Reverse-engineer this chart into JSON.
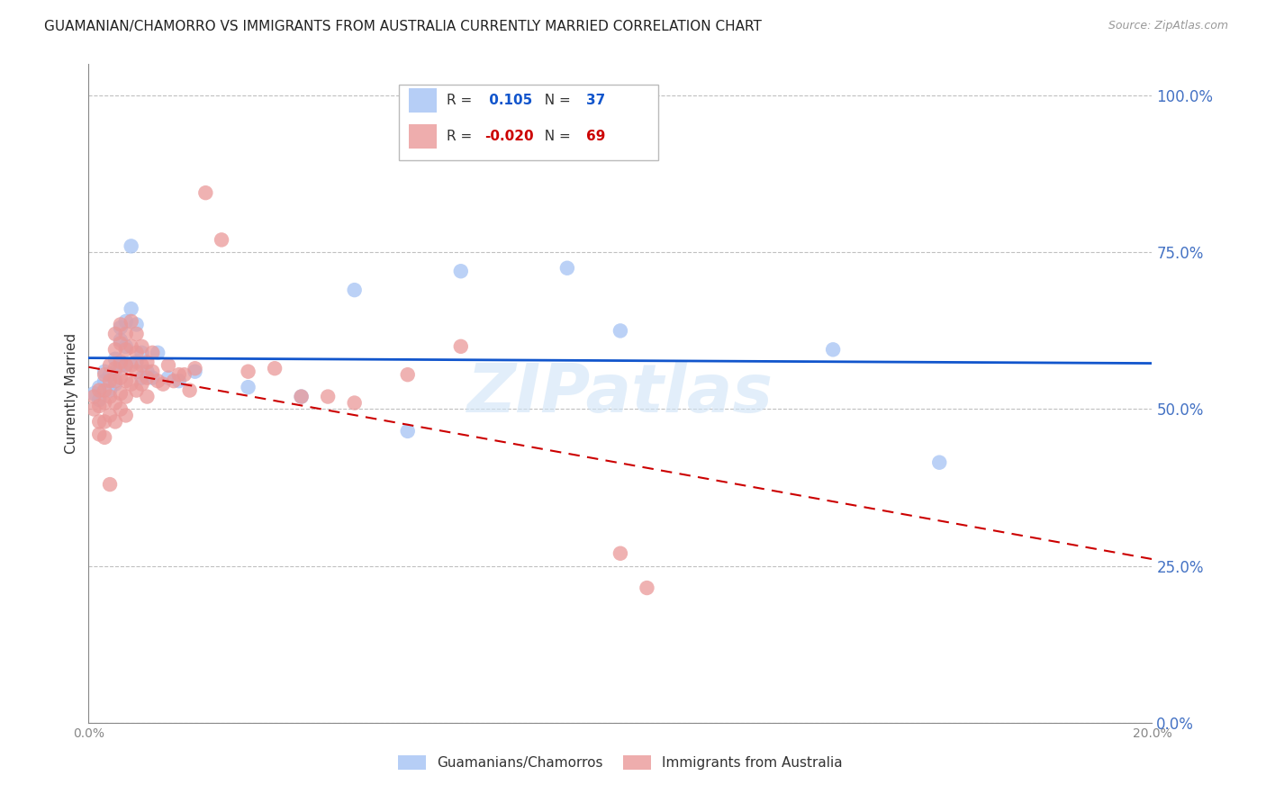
{
  "title": "GUAMANIAN/CHAMORRO VS IMMIGRANTS FROM AUSTRALIA CURRENTLY MARRIED CORRELATION CHART",
  "source": "Source: ZipAtlas.com",
  "ylabel": "Currently Married",
  "right_yticks": [
    0.0,
    0.25,
    0.5,
    0.75,
    1.0
  ],
  "right_yticklabels": [
    "0.0%",
    "25.0%",
    "50.0%",
    "75.0%",
    "100.0%"
  ],
  "legend_blue_R": "0.105",
  "legend_blue_N": "37",
  "legend_pink_R": "-0.020",
  "legend_pink_N": "69",
  "blue_color": "#a4c2f4",
  "pink_color": "#ea9999",
  "trend_blue_color": "#1155cc",
  "trend_pink_color": "#cc0000",
  "watermark": "ZIPatlas",
  "blue_scatter": [
    [
      0.001,
      0.525
    ],
    [
      0.002,
      0.535
    ],
    [
      0.002,
      0.515
    ],
    [
      0.003,
      0.545
    ],
    [
      0.003,
      0.56
    ],
    [
      0.004,
      0.555
    ],
    [
      0.004,
      0.53
    ],
    [
      0.005,
      0.58
    ],
    [
      0.005,
      0.56
    ],
    [
      0.005,
      0.54
    ],
    [
      0.006,
      0.63
    ],
    [
      0.006,
      0.61
    ],
    [
      0.006,
      0.57
    ],
    [
      0.007,
      0.64
    ],
    [
      0.007,
      0.6
    ],
    [
      0.007,
      0.57
    ],
    [
      0.008,
      0.76
    ],
    [
      0.008,
      0.66
    ],
    [
      0.009,
      0.635
    ],
    [
      0.009,
      0.575
    ],
    [
      0.01,
      0.59
    ],
    [
      0.01,
      0.55
    ],
    [
      0.011,
      0.56
    ],
    [
      0.012,
      0.55
    ],
    [
      0.013,
      0.59
    ],
    [
      0.015,
      0.55
    ],
    [
      0.017,
      0.545
    ],
    [
      0.02,
      0.56
    ],
    [
      0.03,
      0.535
    ],
    [
      0.04,
      0.52
    ],
    [
      0.05,
      0.69
    ],
    [
      0.06,
      0.465
    ],
    [
      0.07,
      0.72
    ],
    [
      0.09,
      0.725
    ],
    [
      0.1,
      0.625
    ],
    [
      0.14,
      0.595
    ],
    [
      0.16,
      0.415
    ]
  ],
  "pink_scatter": [
    [
      0.001,
      0.52
    ],
    [
      0.001,
      0.5
    ],
    [
      0.002,
      0.53
    ],
    [
      0.002,
      0.505
    ],
    [
      0.002,
      0.48
    ],
    [
      0.002,
      0.46
    ],
    [
      0.003,
      0.555
    ],
    [
      0.003,
      0.53
    ],
    [
      0.003,
      0.51
    ],
    [
      0.003,
      0.48
    ],
    [
      0.003,
      0.455
    ],
    [
      0.004,
      0.57
    ],
    [
      0.004,
      0.545
    ],
    [
      0.004,
      0.52
    ],
    [
      0.004,
      0.49
    ],
    [
      0.004,
      0.38
    ],
    [
      0.005,
      0.62
    ],
    [
      0.005,
      0.595
    ],
    [
      0.005,
      0.565
    ],
    [
      0.005,
      0.545
    ],
    [
      0.005,
      0.51
    ],
    [
      0.005,
      0.48
    ],
    [
      0.006,
      0.635
    ],
    [
      0.006,
      0.605
    ],
    [
      0.006,
      0.575
    ],
    [
      0.006,
      0.55
    ],
    [
      0.006,
      0.525
    ],
    [
      0.006,
      0.5
    ],
    [
      0.007,
      0.62
    ],
    [
      0.007,
      0.595
    ],
    [
      0.007,
      0.57
    ],
    [
      0.007,
      0.545
    ],
    [
      0.007,
      0.52
    ],
    [
      0.007,
      0.49
    ],
    [
      0.008,
      0.64
    ],
    [
      0.008,
      0.6
    ],
    [
      0.008,
      0.57
    ],
    [
      0.008,
      0.54
    ],
    [
      0.009,
      0.62
    ],
    [
      0.009,
      0.59
    ],
    [
      0.009,
      0.56
    ],
    [
      0.009,
      0.53
    ],
    [
      0.01,
      0.6
    ],
    [
      0.01,
      0.57
    ],
    [
      0.01,
      0.54
    ],
    [
      0.011,
      0.575
    ],
    [
      0.011,
      0.55
    ],
    [
      0.011,
      0.52
    ],
    [
      0.012,
      0.59
    ],
    [
      0.012,
      0.56
    ],
    [
      0.013,
      0.545
    ],
    [
      0.014,
      0.54
    ],
    [
      0.015,
      0.57
    ],
    [
      0.016,
      0.545
    ],
    [
      0.017,
      0.555
    ],
    [
      0.018,
      0.555
    ],
    [
      0.019,
      0.53
    ],
    [
      0.02,
      0.565
    ],
    [
      0.022,
      0.845
    ],
    [
      0.025,
      0.77
    ],
    [
      0.03,
      0.56
    ],
    [
      0.035,
      0.565
    ],
    [
      0.04,
      0.52
    ],
    [
      0.045,
      0.52
    ],
    [
      0.05,
      0.51
    ],
    [
      0.06,
      0.555
    ],
    [
      0.07,
      0.6
    ],
    [
      0.1,
      0.27
    ],
    [
      0.105,
      0.215
    ]
  ],
  "xlim": [
    0.0,
    0.2
  ],
  "ylim": [
    0.0,
    1.05
  ],
  "background_color": "#ffffff",
  "grid_color": "#c0c0c0",
  "axis_color": "#888888",
  "right_label_color": "#4472c4",
  "title_fontsize": 11,
  "source_fontsize": 9
}
